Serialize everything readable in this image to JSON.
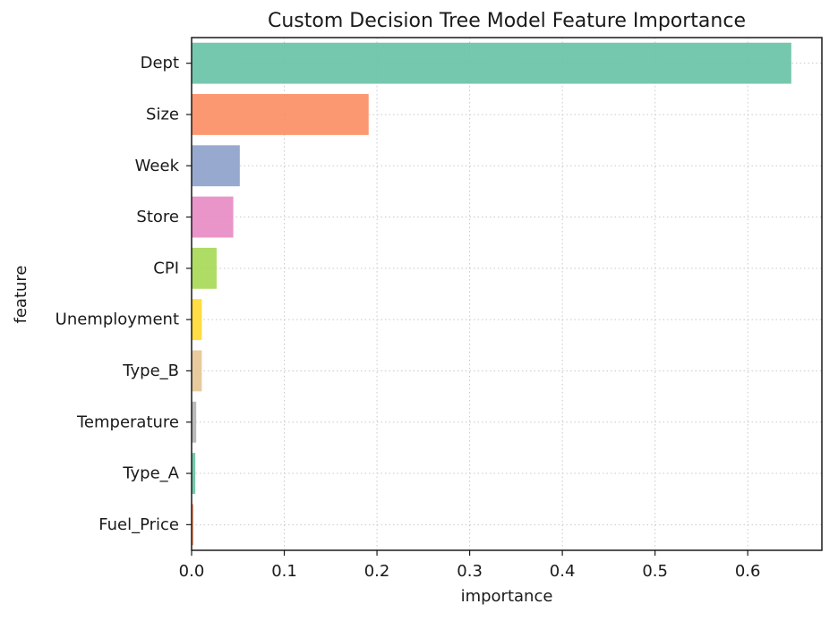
{
  "chart_data": {
    "type": "bar",
    "orientation": "horizontal",
    "title": "Custom Decision Tree Model Feature Importance",
    "xlabel": "importance",
    "ylabel": "feature",
    "categories": [
      "Dept",
      "Size",
      "Week",
      "Store",
      "CPI",
      "Unemployment",
      "Type_B",
      "Temperature",
      "Type_A",
      "Fuel_Price"
    ],
    "values": [
      0.647,
      0.191,
      0.052,
      0.045,
      0.027,
      0.011,
      0.011,
      0.005,
      0.004,
      0.002
    ],
    "colors": [
      "#66c2a5",
      "#fc8d62",
      "#8da0cb",
      "#e78ac3",
      "#a6d854",
      "#ffd92f",
      "#e5c494",
      "#b3b3b3",
      "#66c2a5",
      "#fc8d62"
    ],
    "xlim": [
      0,
      0.68
    ],
    "xticks": [
      0.0,
      0.1,
      0.2,
      0.3,
      0.4,
      0.5,
      0.6
    ],
    "xtick_labels": [
      "0.0",
      "0.1",
      "0.2",
      "0.3",
      "0.4",
      "0.5",
      "0.6"
    ],
    "grid": true,
    "grid_style": "dotted"
  }
}
